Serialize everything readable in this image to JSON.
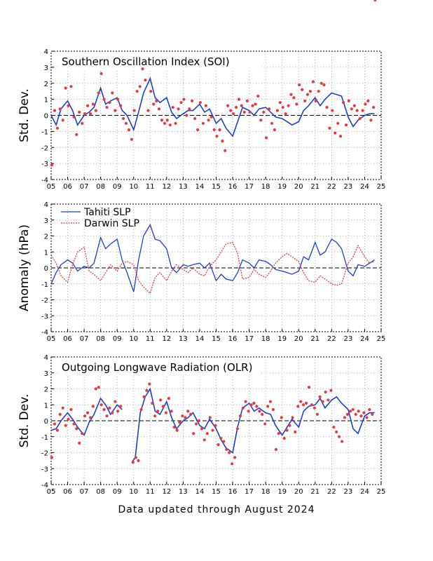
{
  "footer": "Data updated through August 2024",
  "colors": {
    "blue": "#1a3fd6",
    "red": "#e8393f",
    "grid": "#9a9a9a"
  },
  "chart_data": [
    {
      "type": "line",
      "title": "Southern Oscillation Index (SOI)",
      "ylabel": "Std. Dev.",
      "xlabel": "",
      "xlim": [
        2005,
        2025
      ],
      "ylim": [
        -4,
        4
      ],
      "x_ticks": [
        "05",
        "06",
        "07",
        "08",
        "09",
        "10",
        "11",
        "12",
        "13",
        "14",
        "15",
        "16",
        "17",
        "18",
        "19",
        "20",
        "21",
        "22",
        "23",
        "24",
        "25"
      ],
      "y_ticks": [
        -4,
        -3,
        -2,
        -1,
        0,
        1,
        2,
        3,
        4
      ],
      "grid": true,
      "smoothed_x": [
        2005.0,
        2005.3,
        2005.6,
        2006.0,
        2006.3,
        2006.6,
        2007.0,
        2007.3,
        2007.6,
        2008.0,
        2008.3,
        2008.6,
        2009.0,
        2009.3,
        2009.6,
        2010.0,
        2010.3,
        2010.6,
        2011.0,
        2011.3,
        2011.6,
        2012.0,
        2012.3,
        2012.6,
        2013.0,
        2013.3,
        2013.6,
        2014.0,
        2014.3,
        2014.6,
        2015.0,
        2015.3,
        2015.6,
        2016.0,
        2016.3,
        2016.6,
        2017.0,
        2017.3,
        2017.6,
        2018.0,
        2018.3,
        2018.6,
        2019.0,
        2019.3,
        2019.6,
        2020.0,
        2020.3,
        2020.6,
        2021.0,
        2021.3,
        2021.6,
        2022.0,
        2022.3,
        2022.6,
        2023.0,
        2023.3,
        2023.6,
        2024.0,
        2024.3,
        2024.6
      ],
      "smoothed_y": [
        0.0,
        -0.6,
        0.4,
        0.9,
        0.3,
        -0.6,
        0.0,
        0.2,
        0.5,
        1.7,
        0.7,
        0.9,
        1.1,
        0.3,
        0.0,
        -0.9,
        0.2,
        1.4,
        2.3,
        1.1,
        0.8,
        1.1,
        0.2,
        -0.2,
        0.1,
        0.3,
        0.3,
        0.7,
        0.2,
        0.4,
        -0.5,
        -0.2,
        -0.8,
        -1.3,
        -0.4,
        0.5,
        0.3,
        0.0,
        0.4,
        0.5,
        0.2,
        -0.1,
        -0.2,
        -0.4,
        -0.6,
        -0.4,
        0.3,
        0.6,
        1.1,
        0.6,
        1.0,
        1.4,
        1.3,
        1.2,
        -0.1,
        -0.7,
        -0.3,
        0.0,
        0.1,
        0.1
      ],
      "monthly_x": [
        2005.04,
        2005.21,
        2005.38,
        2005.54,
        2005.71,
        2005.88,
        2006.04,
        2006.21,
        2006.38,
        2006.54,
        2006.71,
        2006.88,
        2007.04,
        2007.21,
        2007.38,
        2007.54,
        2007.71,
        2007.88,
        2008.04,
        2008.21,
        2008.38,
        2008.54,
        2008.71,
        2008.88,
        2009.04,
        2009.21,
        2009.38,
        2009.54,
        2009.71,
        2009.88,
        2010.04,
        2010.21,
        2010.38,
        2010.54,
        2010.71,
        2010.88,
        2011.04,
        2011.21,
        2011.38,
        2011.54,
        2011.71,
        2011.88,
        2012.04,
        2012.21,
        2012.38,
        2012.54,
        2012.71,
        2012.88,
        2013.04,
        2013.21,
        2013.38,
        2013.54,
        2013.71,
        2013.88,
        2014.04,
        2014.21,
        2014.38,
        2014.54,
        2014.71,
        2014.88,
        2015.04,
        2015.21,
        2015.38,
        2015.54,
        2015.71,
        2015.88,
        2016.04,
        2016.21,
        2016.38,
        2016.54,
        2016.71,
        2016.88,
        2017.04,
        2017.21,
        2017.38,
        2017.54,
        2017.71,
        2017.88,
        2018.04,
        2018.21,
        2018.38,
        2018.54,
        2018.71,
        2018.88,
        2019.04,
        2019.21,
        2019.38,
        2019.54,
        2019.71,
        2019.88,
        2020.04,
        2020.21,
        2020.38,
        2020.54,
        2020.71,
        2020.88,
        2021.04,
        2021.21,
        2021.38,
        2021.54,
        2021.71,
        2021.88,
        2022.04,
        2022.21,
        2022.38,
        2022.54,
        2022.71,
        2022.88,
        2023.04,
        2023.21,
        2023.38,
        2023.54,
        2023.71,
        2023.88,
        2024.04,
        2024.21,
        2024.38,
        2024.54
      ],
      "monthly_y": [
        -3.1,
        0.3,
        -0.8,
        0.4,
        -0.3,
        1.7,
        0.6,
        1.8,
        -0.1,
        -1.2,
        0.2,
        -0.5,
        0.1,
        0.6,
        0.1,
        0.7,
        0.3,
        1.4,
        2.6,
        1.0,
        0.5,
        0.8,
        1.4,
        0.3,
        1.0,
        0.6,
        -0.2,
        -0.5,
        -0.9,
        -1.5,
        0.3,
        1.5,
        1.8,
        2.9,
        2.2,
        0.3,
        1.5,
        0.7,
        0.9,
        0.4,
        -0.3,
        -0.5,
        -0.3,
        -0.6,
        0.5,
        -0.5,
        0.4,
        0.8,
        1.0,
        0.0,
        0.4,
        0.9,
        -0.2,
        -0.9,
        0.8,
        -0.5,
        0.6,
        -0.3,
        -0.1,
        -0.9,
        -1.3,
        -0.9,
        -1.6,
        -2.2,
        0.6,
        0.3,
        0.1,
        0.5,
        1.0,
        0.6,
        0.2,
        0.9,
        0.2,
        0.6,
        0.7,
        1.2,
        -0.3,
        0.2,
        -1.4,
        0.4,
        -0.5,
        -0.9,
        0.3,
        0.8,
        0.5,
        0.1,
        0.6,
        1.3,
        1.1,
        0.7,
        1.9,
        1.6,
        0.9,
        1.3,
        1.5,
        2.1,
        0.9,
        1.5,
        2.0,
        1.9,
        0.5,
        -0.8,
        0.3,
        -1.1,
        -0.5,
        -1.3,
        0.8,
        -0.6,
        0.9,
        0.4,
        0.6,
        0.3,
        -0.2,
        0.3,
        0.7,
        0.9,
        -0.3,
        0.5,
        0.8,
        0.6
      ]
    },
    {
      "type": "line",
      "title": "",
      "ylabel": "Anomaly (hPa)",
      "xlabel": "",
      "xlim": [
        2005,
        2025
      ],
      "ylim": [
        -4,
        4
      ],
      "x_ticks": [
        "05",
        "06",
        "07",
        "08",
        "09",
        "10",
        "11",
        "12",
        "13",
        "14",
        "15",
        "16",
        "17",
        "18",
        "19",
        "20",
        "21",
        "22",
        "23",
        "24",
        "25"
      ],
      "y_ticks": [
        -4,
        -3,
        -2,
        -1,
        0,
        1,
        2,
        3,
        4
      ],
      "grid": true,
      "legend_position": "top-left",
      "series": [
        {
          "name": "Tahiti SLP",
          "color": "#1a3fd6",
          "style": "solid",
          "x": [
            2005.0,
            2005.3,
            2005.6,
            2006.0,
            2006.3,
            2006.6,
            2007.0,
            2007.3,
            2007.6,
            2008.0,
            2008.3,
            2008.6,
            2009.0,
            2009.3,
            2009.6,
            2010.0,
            2010.3,
            2010.6,
            2011.0,
            2011.3,
            2011.6,
            2012.0,
            2012.3,
            2012.6,
            2013.0,
            2013.3,
            2013.6,
            2014.0,
            2014.3,
            2014.6,
            2015.0,
            2015.3,
            2015.6,
            2016.0,
            2016.3,
            2016.6,
            2017.0,
            2017.3,
            2017.6,
            2018.0,
            2018.3,
            2018.6,
            2019.0,
            2019.3,
            2019.6,
            2020.0,
            2020.3,
            2020.6,
            2021.0,
            2021.3,
            2021.6,
            2022.0,
            2022.3,
            2022.6,
            2023.0,
            2023.3,
            2023.6,
            2024.0,
            2024.3,
            2024.6
          ],
          "y": [
            -1.0,
            -0.3,
            0.2,
            0.5,
            0.3,
            -0.2,
            0.1,
            0.0,
            0.3,
            1.9,
            1.2,
            1.5,
            1.8,
            0.5,
            -0.3,
            -1.5,
            0.5,
            2.0,
            2.7,
            1.8,
            1.7,
            1.2,
            0.0,
            -0.3,
            0.2,
            0.1,
            0.2,
            0.3,
            0.0,
            0.3,
            -0.8,
            -0.4,
            -0.7,
            -0.8,
            -0.3,
            0.5,
            0.3,
            0.0,
            0.5,
            0.4,
            0.2,
            -0.1,
            -0.2,
            -0.3,
            -0.4,
            -0.2,
            0.7,
            0.5,
            1.6,
            0.8,
            1.0,
            1.8,
            1.6,
            1.2,
            -0.2,
            -0.5,
            0.2,
            0.1,
            0.3,
            0.5
          ]
        },
        {
          "name": "Darwin SLP",
          "color": "#e8393f",
          "style": "dotted",
          "x": [
            2005.0,
            2005.3,
            2005.6,
            2006.0,
            2006.3,
            2006.6,
            2007.0,
            2007.3,
            2007.6,
            2008.0,
            2008.3,
            2008.6,
            2009.0,
            2009.3,
            2009.6,
            2010.0,
            2010.3,
            2010.6,
            2011.0,
            2011.3,
            2011.6,
            2012.0,
            2012.3,
            2012.6,
            2013.0,
            2013.3,
            2013.6,
            2014.0,
            2014.3,
            2014.6,
            2015.0,
            2015.3,
            2015.6,
            2016.0,
            2016.3,
            2016.6,
            2017.0,
            2017.3,
            2017.6,
            2018.0,
            2018.3,
            2018.6,
            2019.0,
            2019.3,
            2019.6,
            2020.0,
            2020.3,
            2020.6,
            2021.0,
            2021.3,
            2021.6,
            2022.0,
            2022.3,
            2022.6,
            2023.0,
            2023.3,
            2023.6,
            2024.0,
            2024.3,
            2024.6
          ],
          "y": [
            0.8,
            0.3,
            -0.5,
            -0.9,
            0.2,
            1.0,
            1.3,
            -0.2,
            -0.4,
            -0.8,
            -0.3,
            0.2,
            -0.2,
            0.3,
            0.4,
            0.2,
            -0.8,
            -1.2,
            -1.6,
            -0.6,
            -0.3,
            -0.8,
            -0.2,
            0.2,
            -0.1,
            -0.3,
            0.0,
            -0.4,
            -0.5,
            0.1,
            0.5,
            1.0,
            1.5,
            1.6,
            0.9,
            -0.7,
            -0.6,
            -0.1,
            -0.4,
            -0.6,
            -0.2,
            0.3,
            0.7,
            0.9,
            0.7,
            0.4,
            -0.3,
            -0.8,
            -0.9,
            -0.5,
            -0.7,
            -1.0,
            -1.1,
            -1.0,
            0.3,
            0.7,
            1.4,
            0.7,
            0.3,
            0.4
          ]
        }
      ]
    },
    {
      "type": "line",
      "title": "Outgoing Longwave Radiation (OLR)",
      "ylabel": "Std. Dev.",
      "xlabel": "",
      "xlim": [
        2005,
        2025
      ],
      "ylim": [
        -4,
        4
      ],
      "x_ticks": [
        "05",
        "06",
        "07",
        "08",
        "09",
        "10",
        "11",
        "12",
        "13",
        "14",
        "15",
        "16",
        "17",
        "18",
        "19",
        "20",
        "21",
        "22",
        "23",
        "24",
        "25"
      ],
      "y_ticks": [
        -4,
        -3,
        -2,
        -1,
        0,
        1,
        2,
        3,
        4
      ],
      "grid": true,
      "smoothed_segments": [
        {
          "x": [
            2005.0,
            2005.3,
            2005.6,
            2006.0,
            2006.3,
            2006.6,
            2007.0,
            2007.3,
            2007.6,
            2008.0,
            2008.3,
            2008.6,
            2009.0,
            2009.3
          ],
          "y": [
            -0.6,
            -0.5,
            0.0,
            0.5,
            0.1,
            -0.4,
            -0.9,
            -0.1,
            0.4,
            1.4,
            1.0,
            0.4,
            1.0,
            0.7
          ]
        },
        {
          "x": [
            2009.9,
            2010.1,
            2010.4,
            2010.7,
            2011.0,
            2011.3,
            2011.6,
            2012.0,
            2012.3,
            2012.6,
            2013.0,
            2013.3,
            2013.6,
            2014.0,
            2014.3,
            2014.6,
            2015.0,
            2015.3,
            2015.6,
            2016.0,
            2016.3,
            2016.6,
            2017.0,
            2017.3,
            2017.6,
            2018.0,
            2018.3,
            2018.6,
            2019.0,
            2019.3,
            2019.6,
            2020.0,
            2020.3,
            2020.6,
            2021.0,
            2021.3,
            2021.6,
            2022.0,
            2022.3,
            2022.6,
            2023.0,
            2023.3,
            2023.6,
            2024.0,
            2024.3,
            2024.6
          ],
          "y": [
            -2.6,
            -2.3,
            0.5,
            1.5,
            2.0,
            0.6,
            0.4,
            1.2,
            0.2,
            -0.5,
            0.0,
            0.2,
            0.5,
            -0.3,
            -0.5,
            0.1,
            -0.5,
            -1.2,
            -1.7,
            -2.0,
            -0.4,
            0.8,
            1.1,
            0.6,
            0.8,
            0.5,
            0.4,
            -0.3,
            -0.9,
            -0.4,
            0.1,
            -0.4,
            0.6,
            0.9,
            1.0,
            1.4,
            0.8,
            1.3,
            1.5,
            1.1,
            0.7,
            -0.5,
            -0.8,
            0.3,
            0.5,
            0.5
          ]
        }
      ],
      "monthly_x": [
        2005.04,
        2005.21,
        2005.38,
        2005.54,
        2005.71,
        2005.88,
        2006.04,
        2006.21,
        2006.38,
        2006.54,
        2006.71,
        2006.88,
        2007.04,
        2007.21,
        2007.38,
        2007.54,
        2007.71,
        2007.88,
        2008.04,
        2008.21,
        2008.38,
        2008.54,
        2008.71,
        2008.88,
        2009.04,
        2009.21,
        2009.96,
        2010.13,
        2010.29,
        2010.46,
        2010.63,
        2010.79,
        2010.96,
        2011.13,
        2011.29,
        2011.46,
        2011.63,
        2011.79,
        2011.96,
        2012.13,
        2012.29,
        2012.46,
        2012.63,
        2012.79,
        2012.96,
        2013.13,
        2013.29,
        2013.46,
        2013.63,
        2013.79,
        2013.96,
        2014.13,
        2014.29,
        2014.46,
        2014.63,
        2014.79,
        2014.96,
        2015.13,
        2015.29,
        2015.46,
        2015.63,
        2015.79,
        2015.96,
        2016.13,
        2016.29,
        2016.46,
        2016.63,
        2016.79,
        2016.96,
        2017.13,
        2017.29,
        2017.46,
        2017.63,
        2017.79,
        2017.96,
        2018.13,
        2018.29,
        2018.46,
        2018.63,
        2018.79,
        2018.96,
        2019.13,
        2019.29,
        2019.46,
        2019.63,
        2019.79,
        2019.96,
        2020.13,
        2020.29,
        2020.46,
        2020.63,
        2020.79,
        2020.96,
        2021.13,
        2021.29,
        2021.46,
        2021.63,
        2021.79,
        2021.96,
        2022.13,
        2022.29,
        2022.46,
        2022.63,
        2022.79,
        2022.96,
        2023.13,
        2023.29,
        2023.46,
        2023.63,
        2023.79,
        2023.96,
        2024.13,
        2024.29,
        2024.46,
        2024.63
      ],
      "monthly_y": [
        -2.3,
        -0.2,
        -0.6,
        0.4,
        0.8,
        -0.3,
        0.1,
        0.7,
        -0.2,
        -0.5,
        -1.4,
        -0.8,
        0.3,
        0.5,
        0.2,
        0.9,
        2.0,
        2.1,
        1.0,
        0.7,
        0.3,
        0.8,
        0.5,
        1.2,
        0.6,
        0.9,
        -2.6,
        -2.3,
        -2.5,
        0.7,
        1.5,
        1.9,
        2.3,
        1.1,
        0.3,
        0.6,
        1.3,
        0.9,
        0.5,
        1.4,
        0.6,
        -0.4,
        -0.6,
        -0.1,
        0.3,
        0.2,
        0.6,
        0.4,
        -0.8,
        -0.2,
        0.0,
        -0.5,
        -1.2,
        -0.8,
        0.2,
        -0.6,
        -0.3,
        -1.5,
        -1.1,
        -1.3,
        -1.8,
        -2.0,
        -2.7,
        -2.3,
        -0.5,
        0.3,
        0.8,
        1.2,
        0.6,
        1.0,
        1.1,
        0.9,
        0.6,
        0.4,
        -0.2,
        0.9,
        1.2,
        0.7,
        -1.8,
        -0.8,
        0.2,
        -1.1,
        -0.6,
        -0.3,
        0.2,
        -0.7,
        0.9,
        1.2,
        1.0,
        1.1,
        2.1,
        1.0,
        0.8,
        0.4,
        1.5,
        1.2,
        1.8,
        1.3,
        1.9,
        -0.4,
        -0.7,
        -1.0,
        -1.3,
        0.2,
        0.4,
        0.6,
        0.7,
        0.4,
        0.6,
        0.3,
        0.5,
        0.2,
        0.7,
        0.4
      ]
    }
  ]
}
